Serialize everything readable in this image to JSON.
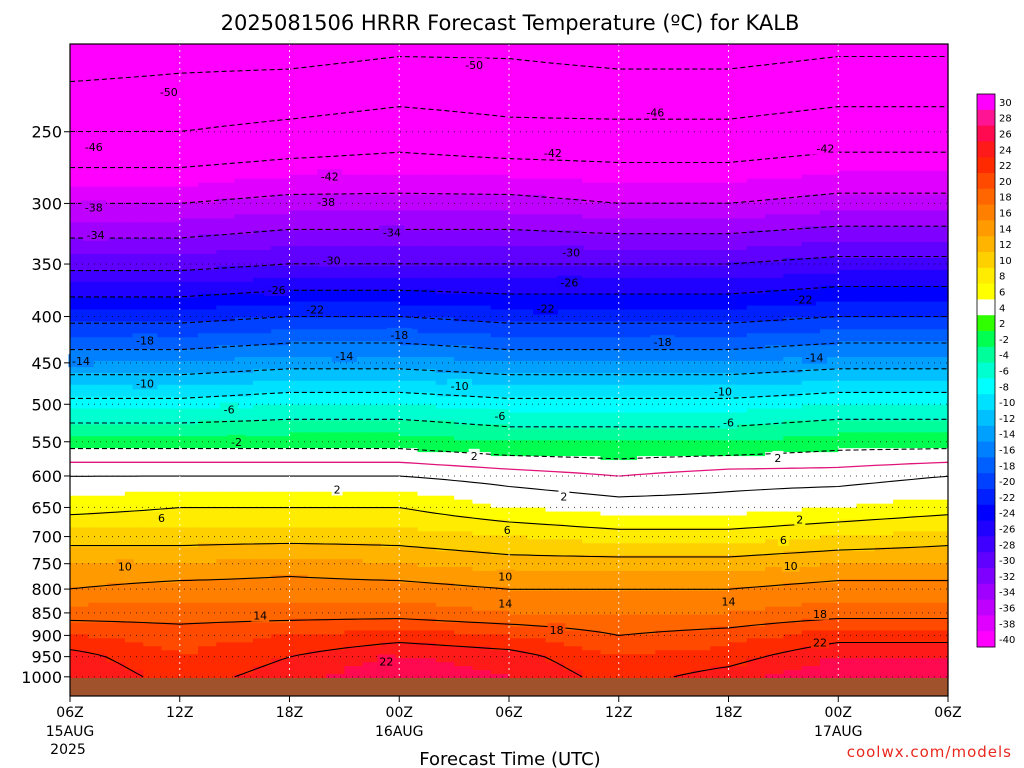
{
  "chart_data": {
    "type": "heatmap",
    "title": "2025081506 HRRR Forecast Temperature (ºC) for KALB",
    "xlabel": "Forecast Time (UTC)",
    "ylabel": "",
    "credit": "coolwx.com/models",
    "x_ticks": [
      {
        "hour": 0,
        "label": "06Z",
        "date": "15AUG",
        "year": "2025"
      },
      {
        "hour": 6,
        "label": "12Z",
        "date": "",
        "year": ""
      },
      {
        "hour": 12,
        "label": "18Z",
        "date": "",
        "year": ""
      },
      {
        "hour": 18,
        "label": "00Z",
        "date": "16AUG",
        "year": ""
      },
      {
        "hour": 24,
        "label": "06Z",
        "date": "",
        "year": ""
      },
      {
        "hour": 30,
        "label": "12Z",
        "date": "",
        "year": ""
      },
      {
        "hour": 36,
        "label": "18Z",
        "date": "",
        "year": ""
      },
      {
        "hour": 42,
        "label": "00Z",
        "date": "17AUG",
        "year": ""
      },
      {
        "hour": 48,
        "label": "06Z",
        "date": "",
        "year": ""
      }
    ],
    "xlim_hours": [
      0,
      48
    ],
    "y_axis": "pressure (hPa), log scale, inverted",
    "y_ticks": [
      250,
      300,
      350,
      400,
      450,
      500,
      550,
      600,
      650,
      700,
      750,
      800,
      850,
      900,
      950,
      1000
    ],
    "ylim": [
      1050,
      200
    ],
    "colorbar": {
      "labels": [
        "30",
        "28",
        "26",
        "24",
        "22",
        "20",
        "18",
        "16",
        "14",
        "12",
        "10",
        "8",
        "6",
        "4",
        "2",
        "-2",
        "-4",
        "-6",
        "-8",
        "-10",
        "-12",
        "-14",
        "-16",
        "-18",
        "-20",
        "-22",
        "-24",
        "-26",
        "-28",
        "-30",
        "-32",
        "-34",
        "-36",
        "-38",
        "-40"
      ],
      "colors": [
        "#ff00ff",
        "#ff1493",
        "#ff0a50",
        "#ff1a1a",
        "#ff2a00",
        "#ff4a00",
        "#ff6600",
        "#ff8000",
        "#ff9a00",
        "#ffb400",
        "#ffd000",
        "#ffec00",
        "#ffff00",
        "#ffffff",
        "#30ff00",
        "#00ff50",
        "#00ff9a",
        "#00ffd0",
        "#00ffff",
        "#00e0ff",
        "#00c0ff",
        "#00a0ff",
        "#0080ff",
        "#0060ff",
        "#0040ff",
        "#0020ff",
        "#0000ff",
        "#2000ff",
        "#4000ff",
        "#6000ff",
        "#8000ff",
        "#a000ff",
        "#c000ff",
        "#e000ff",
        "#ff00ff"
      ]
    },
    "levels_hpa": [
      200,
      250,
      300,
      350,
      400,
      450,
      500,
      550,
      600,
      650,
      700,
      750,
      800,
      850,
      900,
      950,
      1000
    ],
    "times_hours": [
      0,
      6,
      12,
      18,
      24,
      30,
      36,
      42,
      48
    ],
    "temperature_c": [
      [
        -53,
        -52,
        -52,
        -51,
        -51,
        -52,
        -52,
        -51,
        -51
      ],
      [
        -46,
        -46,
        -45,
        -44,
        -45,
        -45,
        -45,
        -44,
        -44
      ],
      [
        -38,
        -38,
        -37,
        -37,
        -37,
        -38,
        -38,
        -37,
        -37
      ],
      [
        -31,
        -31,
        -30,
        -30,
        -30,
        -30,
        -30,
        -29,
        -29
      ],
      [
        -23,
        -23,
        -22,
        -22,
        -23,
        -23,
        -23,
        -22,
        -22
      ],
      [
        -16,
        -16,
        -15,
        -15,
        -16,
        -16,
        -16,
        -15,
        -15
      ],
      [
        -9,
        -9,
        -8,
        -8,
        -9,
        -9,
        -9,
        -8,
        -8
      ],
      [
        -3,
        -3,
        -3,
        -3,
        -4,
        -4,
        -4,
        -3,
        -3
      ],
      [
        2,
        2,
        2,
        2,
        1,
        0,
        1,
        1,
        2
      ],
      [
        5,
        6,
        6,
        6,
        4,
        3,
        3,
        4,
        5
      ],
      [
        9,
        9,
        9,
        9,
        8,
        7,
        7,
        8,
        9
      ],
      [
        12,
        12,
        13,
        12,
        11,
        11,
        11,
        12,
        12
      ],
      [
        14,
        15,
        15,
        15,
        14,
        14,
        14,
        15,
        15
      ],
      [
        17,
        17,
        17,
        17,
        16,
        16,
        16,
        17,
        17
      ],
      [
        20,
        19,
        20,
        21,
        20,
        18,
        19,
        21,
        21
      ],
      [
        23,
        20,
        22,
        24,
        23,
        20,
        21,
        24,
        24
      ],
      [
        24,
        21,
        23,
        26,
        24,
        21,
        23,
        26,
        25
      ]
    ],
    "contour_labels": [
      {
        "text": "-50",
        "hour": 22.1,
        "p": 211
      },
      {
        "text": "-50",
        "hour": 5.4,
        "p": 226
      },
      {
        "text": "-46",
        "hour": 32.0,
        "p": 238
      },
      {
        "text": "-46",
        "hour": 1.3,
        "p": 260
      },
      {
        "text": "-42",
        "hour": 14.2,
        "p": 280
      },
      {
        "text": "-42",
        "hour": 26.4,
        "p": 264
      },
      {
        "text": "-42",
        "hour": 41.3,
        "p": 261
      },
      {
        "text": "-38",
        "hour": 1.3,
        "p": 303
      },
      {
        "text": "-38",
        "hour": 14.0,
        "p": 299
      },
      {
        "text": "-34",
        "hour": 1.4,
        "p": 325
      },
      {
        "text": "-34",
        "hour": 17.6,
        "p": 323
      },
      {
        "text": "-30",
        "hour": 14.3,
        "p": 347
      },
      {
        "text": "-30",
        "hour": 27.4,
        "p": 340
      },
      {
        "text": "-26",
        "hour": 11.3,
        "p": 374
      },
      {
        "text": "-26",
        "hour": 27.3,
        "p": 367
      },
      {
        "text": "-22",
        "hour": 13.4,
        "p": 393
      },
      {
        "text": "-22",
        "hour": 26.0,
        "p": 392
      },
      {
        "text": "-22",
        "hour": 40.1,
        "p": 383
      },
      {
        "text": "-18",
        "hour": 4.1,
        "p": 425
      },
      {
        "text": "-18",
        "hour": 18.0,
        "p": 419
      },
      {
        "text": "-18",
        "hour": 32.4,
        "p": 427
      },
      {
        "text": "-14",
        "hour": 0.6,
        "p": 448
      },
      {
        "text": "-14",
        "hour": 15.0,
        "p": 442
      },
      {
        "text": "-14",
        "hour": 40.7,
        "p": 444
      },
      {
        "text": "-10",
        "hour": 4.1,
        "p": 474
      },
      {
        "text": "-10",
        "hour": 21.3,
        "p": 477
      },
      {
        "text": "-10",
        "hour": 35.7,
        "p": 484
      },
      {
        "text": "-6",
        "hour": 8.7,
        "p": 507
      },
      {
        "text": "-6",
        "hour": 23.5,
        "p": 515
      },
      {
        "text": "-6",
        "hour": 36.0,
        "p": 524
      },
      {
        "text": "-2",
        "hour": 9.1,
        "p": 550
      },
      {
        "text": "2",
        "hour": 22.1,
        "p": 570
      },
      {
        "text": "2",
        "hour": 38.7,
        "p": 573
      },
      {
        "text": "2",
        "hour": 14.6,
        "p": 621
      },
      {
        "text": "2",
        "hour": 27.0,
        "p": 632
      },
      {
        "text": "2",
        "hour": 39.9,
        "p": 670
      },
      {
        "text": "6",
        "hour": 5.0,
        "p": 668
      },
      {
        "text": "6",
        "hour": 23.9,
        "p": 688
      },
      {
        "text": "6",
        "hour": 39.0,
        "p": 706
      },
      {
        "text": "10",
        "hour": 3.0,
        "p": 755
      },
      {
        "text": "10",
        "hour": 23.8,
        "p": 775
      },
      {
        "text": "10",
        "hour": 39.4,
        "p": 754
      },
      {
        "text": "14",
        "hour": 10.4,
        "p": 856
      },
      {
        "text": "14",
        "hour": 23.8,
        "p": 830
      },
      {
        "text": "14",
        "hour": 36.0,
        "p": 826
      },
      {
        "text": "18",
        "hour": 26.6,
        "p": 888
      },
      {
        "text": "18",
        "hour": 41.0,
        "p": 852
      },
      {
        "text": "22",
        "hour": 17.3,
        "p": 962
      },
      {
        "text": "22",
        "hour": 41.0,
        "p": 916
      }
    ],
    "ground_color": "#a0522d",
    "grid": true
  }
}
